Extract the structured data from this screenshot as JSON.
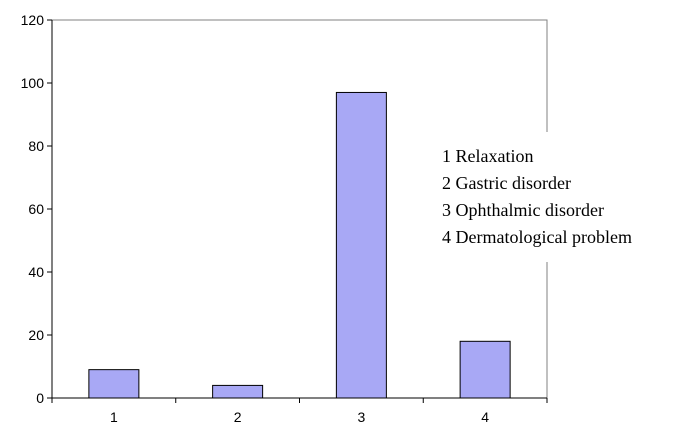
{
  "chart_data": {
    "type": "bar",
    "categories": [
      "1",
      "2",
      "3",
      "4"
    ],
    "values": [
      9,
      4,
      97,
      18
    ],
    "ylim": [
      0,
      120
    ],
    "yticks": [
      "0",
      "20",
      "40",
      "60",
      "80",
      "100",
      "120"
    ],
    "grid": false,
    "legend_position": "right",
    "bar_color": "#a8a8f5",
    "bar_stroke": "#000000",
    "annotations": [
      "1 Relaxation",
      "2 Gastric disorder",
      "3 Ophthalmic disorder",
      "4 Dermatological problem"
    ]
  }
}
